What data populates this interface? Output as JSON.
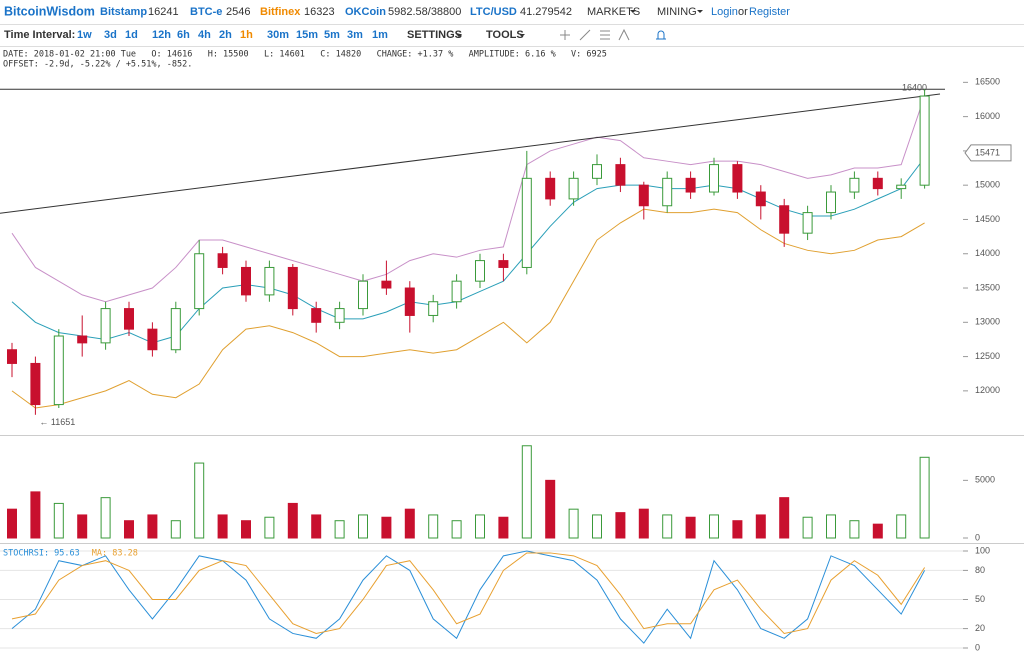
{
  "nav": {
    "brand": "BitcoinWisdom",
    "tickers": [
      {
        "name": "Bitstamp",
        "price": 16241
      },
      {
        "name": "BTC-e",
        "price": 2546
      },
      {
        "name": "Bitfinex",
        "price": 16323
      },
      {
        "name": "OKCoin",
        "price": "5982.58/38800"
      },
      {
        "name": "LTC/USD",
        "price": 41.279542
      }
    ],
    "menus": [
      "MARKETS",
      "MINING"
    ],
    "login": "Login",
    "or": "or",
    "register": "Register"
  },
  "toolbar": {
    "label": "Time Interval:",
    "intervals": [
      "1w",
      "3d",
      "1d",
      "12h",
      "6h",
      "4h",
      "2h",
      "1h",
      "30m",
      "15m",
      "5m",
      "3m",
      "1m"
    ],
    "active_index": 7,
    "settings": "SETTINGS",
    "tools": "TOOLS"
  },
  "info": [
    "DATE: 2018-01-02 21:00 Tue   O: 14616   H: 15500   L: 14601   C: 14820   CHANGE: +1.37 %   AMPLITUDE: 6.16 %   V: 6925",
    "OFFSET: -2.9d, -5.22% / +5.51%, -852."
  ],
  "chart_data": [
    {
      "type": "candlestick",
      "up_color": "#3a9a3a",
      "down_color": "#c8102e",
      "open": [
        12600,
        12400,
        11800,
        12800,
        12700,
        13200,
        12900,
        12600,
        13200,
        14000,
        13800,
        13400,
        13800,
        13200,
        13000,
        13200,
        13600,
        13500,
        13100,
        13300,
        13600,
        13900,
        13800,
        15100,
        14800,
        15100,
        15300,
        15000,
        14700,
        15100,
        14900,
        15300,
        14900,
        14700,
        14300,
        14600,
        14900,
        15100,
        14950,
        15000
      ],
      "high": [
        12700,
        12500,
        12900,
        13100,
        13300,
        13300,
        13000,
        13300,
        14200,
        14100,
        13900,
        13900,
        13850,
        13300,
        13300,
        13700,
        13900,
        13600,
        13400,
        13700,
        14000,
        14000,
        15500,
        15200,
        15200,
        15450,
        15400,
        15050,
        15200,
        15200,
        15400,
        15350,
        15000,
        14800,
        14700,
        15000,
        15200,
        15200,
        15100,
        16400
      ],
      "low": [
        12200,
        11651,
        11750,
        12500,
        12600,
        12800,
        12500,
        12550,
        13100,
        13700,
        13300,
        13300,
        13100,
        12850,
        12900,
        13100,
        13400,
        12850,
        13000,
        13200,
        13500,
        13600,
        13700,
        14700,
        14700,
        15000,
        14900,
        14500,
        14600,
        14800,
        14850,
        14800,
        14500,
        14100,
        14200,
        14500,
        14800,
        14850,
        14800,
        14950
      ],
      "close": [
        12400,
        11800,
        12800,
        12700,
        13200,
        12900,
        12600,
        13200,
        14000,
        13800,
        13400,
        13800,
        13200,
        13000,
        13200,
        13600,
        13500,
        13100,
        13300,
        13600,
        13900,
        13800,
        15100,
        14800,
        15100,
        15300,
        15000,
        14700,
        15100,
        14900,
        15300,
        14900,
        14700,
        14300,
        14600,
        14900,
        15100,
        14950,
        15000,
        16300
      ],
      "bands": [
        {
          "color": "#c890c8",
          "values": [
            14300,
            13800,
            13600,
            13400,
            13300,
            13400,
            13500,
            13800,
            14200,
            14200,
            14100,
            14000,
            13900,
            13800,
            13700,
            13600,
            13700,
            13900,
            14000,
            13950,
            14050,
            14100,
            15300,
            15500,
            15600,
            15700,
            15650,
            15400,
            15350,
            15300,
            15350,
            15350,
            15300,
            15200,
            15100,
            15150,
            15250,
            15250,
            15300,
            16300
          ]
        },
        {
          "color": "#2a9fb8",
          "values": [
            13300,
            13000,
            12850,
            12800,
            12750,
            12850,
            12700,
            12800,
            13200,
            13500,
            13550,
            13500,
            13400,
            13200,
            13050,
            13050,
            13150,
            13300,
            13250,
            13300,
            13450,
            13600,
            14000,
            14400,
            14750,
            14950,
            15000,
            15000,
            14950,
            14950,
            15000,
            14950,
            14800,
            14650,
            14550,
            14550,
            14650,
            14800,
            14950,
            15400
          ]
        },
        {
          "color": "#e0a030",
          "values": [
            12000,
            11750,
            11800,
            11900,
            12000,
            12150,
            11950,
            11900,
            12100,
            12600,
            12900,
            12950,
            12850,
            12700,
            12500,
            12500,
            12550,
            12600,
            12550,
            12600,
            12800,
            13000,
            12700,
            13000,
            13600,
            14200,
            14450,
            14650,
            14600,
            14600,
            14650,
            14600,
            14350,
            14150,
            14050,
            14000,
            14050,
            14200,
            14250,
            14450
          ]
        }
      ],
      "trendline": [
        14590,
        16330
      ],
      "hline": 16400,
      "price_marker": 15471,
      "low_marker": {
        "value": 11651,
        "label": "← 11651"
      },
      "ylim": [
        11400,
        16680
      ],
      "yticks": [
        12000,
        12500,
        13000,
        13500,
        14000,
        14500,
        15000,
        15500,
        16000,
        16500
      ]
    },
    {
      "type": "bar",
      "values": [
        2500,
        4000,
        3000,
        2000,
        3500,
        1500,
        2000,
        1500,
        6500,
        2000,
        1500,
        1800,
        3000,
        2000,
        1500,
        2000,
        1800,
        2500,
        2000,
        1500,
        2000,
        1800,
        8000,
        5000,
        2500,
        2000,
        2200,
        2500,
        2000,
        1800,
        2000,
        1500,
        2000,
        3500,
        1800,
        2000,
        1500,
        1200,
        2000,
        7000
      ],
      "ylim": [
        0,
        8500
      ],
      "yticks": [
        0,
        5000
      ]
    },
    {
      "type": "line",
      "grid": true,
      "series": [
        {
          "label": "STOCHRSI: 95.63",
          "color": "#2a8fd8",
          "values": [
            20,
            40,
            90,
            85,
            95,
            60,
            30,
            60,
            95,
            90,
            70,
            30,
            15,
            10,
            30,
            70,
            95,
            80,
            30,
            10,
            60,
            95,
            100,
            95,
            90,
            70,
            30,
            5,
            40,
            10,
            90,
            60,
            20,
            10,
            30,
            95,
            85,
            60,
            35,
            80
          ]
        },
        {
          "label": "MA: 83.28",
          "color": "#e8a030",
          "values": [
            30,
            35,
            70,
            85,
            90,
            80,
            50,
            50,
            80,
            90,
            85,
            55,
            25,
            15,
            20,
            50,
            85,
            90,
            60,
            25,
            35,
            80,
            98,
            98,
            95,
            85,
            55,
            20,
            25,
            25,
            60,
            70,
            40,
            15,
            20,
            70,
            90,
            75,
            45,
            83
          ]
        }
      ],
      "ylim": [
        0,
        100
      ],
      "yticks": [
        0,
        20,
        50,
        80,
        100
      ]
    }
  ]
}
